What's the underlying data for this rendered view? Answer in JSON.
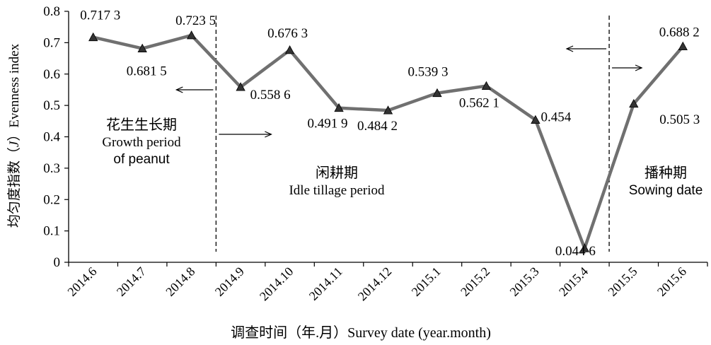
{
  "chart_data": {
    "type": "line",
    "title": "",
    "xlabel": "调查时间（年.月）Survey date (year.month)",
    "ylabel": "均匀度指数（J）Evenness index",
    "ylabel_prefix": "均匀度指数（",
    "ylabel_j": "J",
    "ylabel_suffix": "）Evenness index",
    "ylim": [
      0,
      0.8
    ],
    "yticks": [
      "0",
      "0.1",
      "0.2",
      "0.3",
      "0.4",
      "0.5",
      "0.6",
      "0.7",
      "0.8"
    ],
    "categories": [
      "2014.6",
      "2014.7",
      "2014.8",
      "2014.9",
      "2014.10",
      "2014.11",
      "2014.12",
      "2015.1",
      "2015.2",
      "2015.3",
      "2015.4",
      "2015.5",
      "2015.6"
    ],
    "series": [
      {
        "values": [
          0.7173,
          0.6815,
          0.7235,
          0.5586,
          0.6763,
          0.4919,
          0.4842,
          0.5393,
          0.5621,
          0.454,
          0.0446,
          0.5053,
          0.6882
        ],
        "labels": [
          "0.717 3",
          "0.681 5",
          "0.723 5",
          "0.558 6",
          "0.676 3",
          "0.491 9",
          "0.484 2",
          "0.539 3",
          "0.562 1",
          "0.454",
          "0.044 6",
          "0.505 3",
          "0.688 2"
        ],
        "color": "#707070",
        "marker": "triangle"
      }
    ],
    "grid": false,
    "legend": "none",
    "periods": [
      {
        "cn": "花生生长期",
        "en1": "Growth period",
        "en2": "of peanut"
      },
      {
        "cn": "闲耕期",
        "en1": "Idle tillage period"
      },
      {
        "cn": "播种期",
        "en1": "Sowing date"
      }
    ],
    "boundaries_between": [
      [
        2,
        3
      ],
      [
        10,
        11
      ]
    ]
  }
}
